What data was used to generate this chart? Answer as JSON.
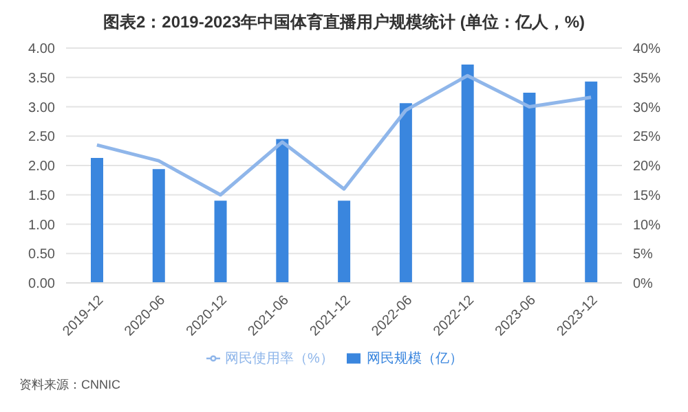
{
  "chart_data": {
    "type": "bar",
    "title": "图表2：2019-2023年中国体育直播用户规模统计 (单位：亿人，%)",
    "categories": [
      "2019-12",
      "2020-06",
      "2020-12",
      "2021-06",
      "2021-12",
      "2022-06",
      "2022-12",
      "2023-06",
      "2023-12"
    ],
    "series": [
      {
        "name": "网民规模（亿）",
        "color": "#3a86de",
        "values": [
          2.13,
          1.94,
          1.4,
          2.45,
          1.4,
          3.06,
          3.72,
          3.24,
          3.43
        ]
      },
      {
        "name": "网民使用率（%）",
        "type": "line",
        "axis": "y2",
        "color": "#8fb6ea",
        "values": [
          23.5,
          20.8,
          15,
          24,
          16,
          29.4,
          35.3,
          30,
          31.6
        ]
      }
    ],
    "ylim": [
      0,
      4
    ],
    "yticks": [
      {
        "value": 0,
        "label": "0.00"
      },
      {
        "value": 0.5,
        "label": "0.50"
      },
      {
        "value": 1,
        "label": "1.00"
      },
      {
        "value": 1.5,
        "label": "1.50"
      },
      {
        "value": 2,
        "label": "2.00"
      },
      {
        "value": 2.5,
        "label": "2.50"
      },
      {
        "value": 3,
        "label": "3.00"
      },
      {
        "value": 3.5,
        "label": "3.50"
      },
      {
        "value": 4,
        "label": "4.00"
      }
    ],
    "y2lim": [
      0,
      40
    ],
    "y2ticks": [
      {
        "value": 0,
        "label": "0%"
      },
      {
        "value": 5,
        "label": "5%"
      },
      {
        "value": 10,
        "label": "10%"
      },
      {
        "value": 15,
        "label": "15%"
      },
      {
        "value": 20,
        "label": "20%"
      },
      {
        "value": 25,
        "label": "25%"
      },
      {
        "value": 30,
        "label": "30%"
      },
      {
        "value": 35,
        "label": "35%"
      },
      {
        "value": 40,
        "label": "40%"
      }
    ],
    "grid": "y",
    "legend": "bottom",
    "marker": "none",
    "annotations": [
      "资料来源：CNNIC"
    ]
  }
}
